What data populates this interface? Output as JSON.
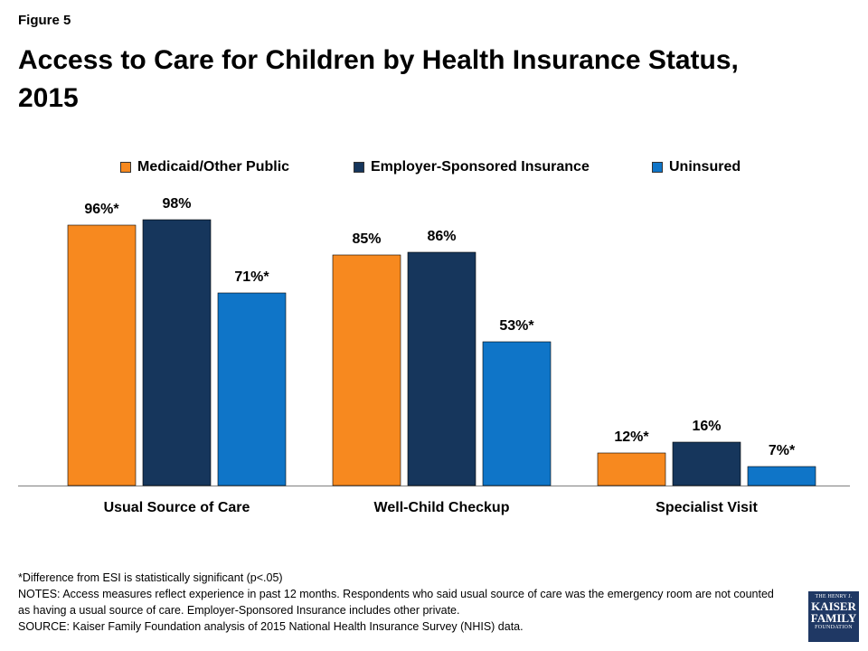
{
  "figure_label": "Figure 5",
  "title_line1": "Access to Care for Children by Health Insurance Status,",
  "title_line2": "2015",
  "chart_data": {
    "type": "bar",
    "title": "Access to Care for Children by Health Insurance Status, 2015",
    "categories": [
      "Usual Source of Care",
      "Well-Child Checkup",
      "Specialist Visit"
    ],
    "ylim": [
      0,
      100
    ],
    "grid": false,
    "legend_position": "top",
    "series": [
      {
        "name": "Medicaid/Other Public",
        "color": "#f7891f",
        "values": [
          96,
          85,
          12
        ],
        "labels": [
          "96%*",
          "85%",
          "12%*"
        ]
      },
      {
        "name": "Employer-Sponsored Insurance",
        "color": "#16365c",
        "values": [
          98,
          86,
          16
        ],
        "labels": [
          "98%",
          "86%",
          "16%"
        ]
      },
      {
        "name": "Uninsured",
        "color": "#0f75c8",
        "values": [
          71,
          53,
          7
        ],
        "labels": [
          "71%*",
          "53%*",
          "7%*"
        ]
      }
    ]
  },
  "notes": {
    "significance": "*Difference from ESI is statistically significant (p<.05)",
    "notes_text": "NOTES: Access measures reflect experience in past 12 months. Respondents who said usual source of care was the emergency room are not counted as having a usual source of care. Employer-Sponsored Insurance includes other private.",
    "source": "SOURCE: Kaiser Family Foundation analysis of 2015 National Health Insurance Survey (NHIS) data."
  },
  "logo": {
    "line1": "THE HENRY J.",
    "line2": "KAISER",
    "line3": "FAMILY",
    "line4": "FOUNDATION"
  }
}
